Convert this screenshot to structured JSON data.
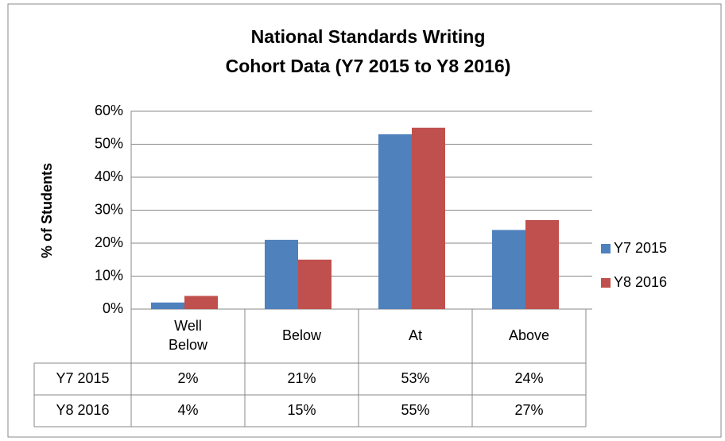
{
  "chart_data": {
    "type": "bar",
    "title": [
      "National Standards Writing",
      "Cohort Data (Y7 2015 to Y8 2016)"
    ],
    "ylabel": "% of Students",
    "categories": [
      "Well Below",
      "Below",
      "At",
      "Above"
    ],
    "series": [
      {
        "name": "Y7 2015",
        "color": "#4f81bd",
        "values": [
          2,
          21,
          53,
          24
        ],
        "value_labels": [
          "2%",
          "21%",
          "53%",
          "24%"
        ]
      },
      {
        "name": "Y8 2016",
        "color": "#c0504d",
        "values": [
          4,
          15,
          55,
          27
        ],
        "value_labels": [
          "4%",
          "15%",
          "55%",
          "27%"
        ]
      }
    ],
    "ylim": [
      0,
      60
    ],
    "yticks": [
      {
        "value": 0,
        "label": "0%"
      },
      {
        "value": 10,
        "label": "10%"
      },
      {
        "value": 20,
        "label": "20%"
      },
      {
        "value": 30,
        "label": "30%"
      },
      {
        "value": 40,
        "label": "40%"
      },
      {
        "value": 50,
        "label": "50%"
      },
      {
        "value": 60,
        "label": "60%"
      }
    ],
    "grid": true,
    "legend": "right"
  }
}
